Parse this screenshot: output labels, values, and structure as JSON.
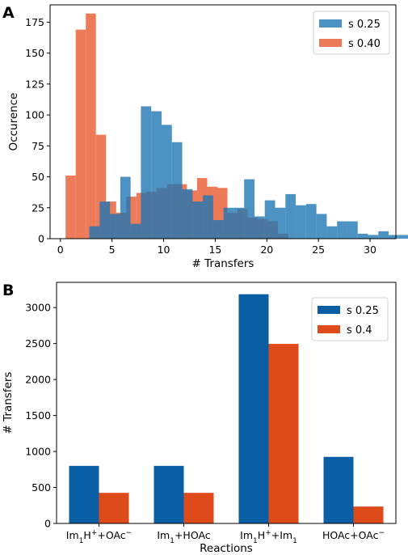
{
  "panels": {
    "a": {
      "letter": "A"
    },
    "b": {
      "letter": "B"
    }
  },
  "colors": {
    "a_blue": "#1f77b4",
    "a_orange": "#e8592e",
    "b_blue": "#0a5ea3",
    "b_orange": "#df4a1a"
  },
  "chart_data": [
    {
      "type": "histogram",
      "panel": "A",
      "xlabel": "# Transfers",
      "ylabel": "Occurence",
      "xlim": [
        -1,
        32.5
      ],
      "ylim": [
        0,
        189
      ],
      "xticks": [
        0,
        5,
        10,
        15,
        20,
        25,
        30
      ],
      "yticks": [
        0,
        25,
        50,
        75,
        100,
        125,
        150,
        175
      ],
      "grid": false,
      "legend_position": "top-right",
      "series": [
        {
          "name": "s 0.25",
          "color": "#1f77b4",
          "alpha": 0.8,
          "bin_start": 2.8,
          "bin_width": 1,
          "values": [
            10,
            30,
            20,
            50,
            12,
            107,
            103,
            92,
            78,
            40,
            30,
            35,
            15,
            25,
            25,
            48,
            18,
            31,
            25,
            36,
            27,
            28,
            20,
            10,
            14,
            14,
            4,
            3,
            6,
            3,
            3,
            1,
            6
          ]
        },
        {
          "name": "s 0.40",
          "color": "#e8592e",
          "alpha": 0.8,
          "bin_start": 0.5,
          "bin_width": 0.98,
          "values": [
            51,
            169,
            182,
            84,
            30,
            21,
            34,
            37,
            38,
            41,
            44,
            44,
            39,
            49,
            42,
            41,
            21,
            24,
            17,
            16,
            14,
            4
          ]
        }
      ]
    },
    {
      "type": "bar",
      "panel": "B",
      "xlabel": "Reactions",
      "ylabel": "# Transfers",
      "ylim": [
        0,
        3350
      ],
      "yticks": [
        0,
        500,
        1000,
        1500,
        2000,
        2500,
        3000
      ],
      "categories": [
        "Im₁H⁺+OAc⁻",
        "Im₁+HOAc",
        "Im₁H⁺+Im₁",
        "HOAc+OAc⁻"
      ],
      "grid": false,
      "legend_position": "top-right",
      "series": [
        {
          "name": "s 0.25",
          "color": "#0a5ea3",
          "values": [
            800,
            800,
            3185,
            925
          ]
        },
        {
          "name": "s 0.4",
          "color": "#df4a1a",
          "values": [
            425,
            425,
            2495,
            235
          ]
        }
      ]
    }
  ]
}
